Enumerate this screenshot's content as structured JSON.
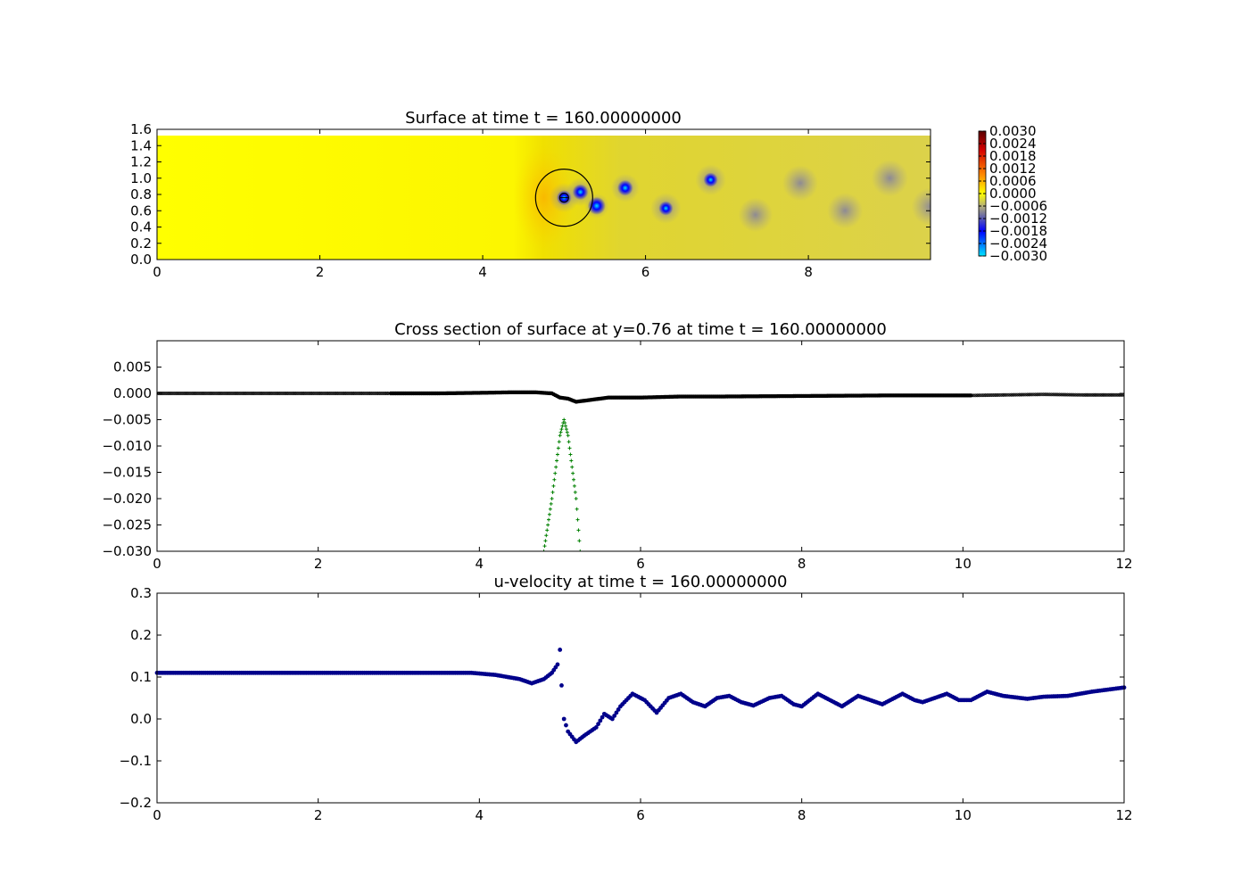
{
  "chart_data": [
    {
      "type": "heatmap",
      "title": "Surface at time t =   160.00000000",
      "xlabel": "",
      "ylabel": "",
      "xlim": [
        0,
        9.5
      ],
      "ylim": [
        0,
        1.6
      ],
      "x_ticks": [
        "0",
        "2",
        "4",
        "6",
        "8"
      ],
      "y_ticks": [
        "0.0",
        "0.2",
        "0.4",
        "0.6",
        "0.8",
        "1.0",
        "1.2",
        "1.4",
        "1.6"
      ],
      "colorbar": {
        "range": [
          -0.003,
          0.003
        ],
        "ticks": [
          "0.0030",
          "0.0024",
          "0.0018",
          "0.0012",
          "0.0006",
          "0.0000",
          "−0.0006",
          "−0.0012",
          "−0.0018",
          "−0.0024",
          "−0.0030"
        ]
      },
      "vortices": [
        {
          "x": 5.0,
          "y": 0.76,
          "value": -0.0022
        },
        {
          "x": 5.2,
          "y": 0.83,
          "value": -0.0024
        },
        {
          "x": 5.4,
          "y": 0.66,
          "value": -0.003
        },
        {
          "x": 5.75,
          "y": 0.88,
          "value": -0.0024
        },
        {
          "x": 6.25,
          "y": 0.63,
          "value": -0.002
        },
        {
          "x": 6.8,
          "y": 0.98,
          "value": -0.002
        },
        {
          "x": 7.35,
          "y": 0.55,
          "value": -0.0014
        },
        {
          "x": 7.9,
          "y": 0.94,
          "value": -0.0012
        },
        {
          "x": 8.45,
          "y": 0.6,
          "value": -0.0012
        },
        {
          "x": 9.0,
          "y": 1.0,
          "value": -0.001
        },
        {
          "x": 9.5,
          "y": 0.65,
          "value": -0.0008
        }
      ],
      "colors": {
        "positive": "#ff0000",
        "zero": "#ffff00",
        "negative": "#0000ff",
        "min": "#00e5ff"
      }
    },
    {
      "type": "scatter",
      "title": "Cross section of surface at y=0.76 at time t =   160.00000000",
      "xlabel": "",
      "ylabel": "",
      "xlim": [
        0,
        12
      ],
      "ylim": [
        -0.03,
        0.01
      ],
      "x_ticks": [
        "0",
        "2",
        "4",
        "6",
        "8",
        "10",
        "12"
      ],
      "y_ticks": [
        "0.005",
        "0.000",
        "−0.005",
        "−0.010",
        "−0.015",
        "−0.020",
        "−0.025",
        "−0.030"
      ],
      "series": [
        {
          "color": "#000000",
          "points": [
            [
              0,
              0.0
            ],
            [
              1,
              0.0
            ],
            [
              2,
              0.0
            ],
            [
              2.9,
              0.0
            ],
            [
              3.5,
              0.0
            ],
            [
              4.0,
              0.0001
            ],
            [
              4.4,
              0.0002
            ],
            [
              4.7,
              0.0002
            ],
            [
              4.9,
              0.0
            ],
            [
              5.0,
              -0.0008
            ],
            [
              5.1,
              -0.001
            ],
            [
              5.2,
              -0.0016
            ],
            [
              5.4,
              -0.0012
            ],
            [
              5.6,
              -0.0008
            ],
            [
              6.0,
              -0.0008
            ],
            [
              6.5,
              -0.0006
            ],
            [
              7.0,
              -0.0006
            ],
            [
              8.0,
              -0.0005
            ],
            [
              9.0,
              -0.0004
            ],
            [
              10.1,
              -0.0004
            ],
            [
              10.5,
              -0.0003
            ],
            [
              11.0,
              -0.0002
            ],
            [
              11.5,
              -0.0003
            ],
            [
              12.0,
              -0.0003
            ]
          ]
        },
        {
          "color": "#008000",
          "points": [
            [
              4.8,
              -0.03
            ],
            [
              4.9,
              -0.02
            ],
            [
              5.0,
              -0.008
            ],
            [
              5.05,
              -0.005
            ],
            [
              5.1,
              -0.008
            ],
            [
              5.2,
              -0.02
            ],
            [
              5.25,
              -0.03
            ]
          ]
        }
      ]
    },
    {
      "type": "scatter",
      "title": "u-velocity at time t =   160.00000000",
      "xlabel": "",
      "ylabel": "",
      "xlim": [
        0,
        12
      ],
      "ylim": [
        -0.2,
        0.3
      ],
      "x_ticks": [
        "0",
        "2",
        "4",
        "6",
        "8",
        "10",
        "12"
      ],
      "y_ticks": [
        "0.3",
        "0.2",
        "0.1",
        "0.0",
        "−0.1",
        "−0.2"
      ],
      "series": [
        {
          "color": "#00008b",
          "points": [
            [
              0,
              0.11
            ],
            [
              1,
              0.11
            ],
            [
              2,
              0.11
            ],
            [
              3,
              0.11
            ],
            [
              3.9,
              0.11
            ],
            [
              4.2,
              0.105
            ],
            [
              4.5,
              0.095
            ],
            [
              4.65,
              0.085
            ],
            [
              4.8,
              0.095
            ],
            [
              4.9,
              0.11
            ],
            [
              4.97,
              0.13
            ],
            [
              5.0,
              0.165
            ],
            [
              5.02,
              0.08
            ],
            [
              5.05,
              0.0
            ],
            [
              5.1,
              -0.03
            ],
            [
              5.2,
              -0.055
            ],
            [
              5.3,
              -0.04
            ],
            [
              5.45,
              -0.02
            ],
            [
              5.55,
              0.012
            ],
            [
              5.65,
              0.0
            ],
            [
              5.75,
              0.03
            ],
            [
              5.9,
              0.06
            ],
            [
              6.05,
              0.045
            ],
            [
              6.2,
              0.015
            ],
            [
              6.35,
              0.05
            ],
            [
              6.5,
              0.06
            ],
            [
              6.65,
              0.04
            ],
            [
              6.8,
              0.03
            ],
            [
              6.95,
              0.05
            ],
            [
              7.1,
              0.055
            ],
            [
              7.25,
              0.04
            ],
            [
              7.4,
              0.032
            ],
            [
              7.6,
              0.05
            ],
            [
              7.75,
              0.055
            ],
            [
              7.9,
              0.035
            ],
            [
              8.0,
              0.03
            ],
            [
              8.2,
              0.06
            ],
            [
              8.35,
              0.045
            ],
            [
              8.5,
              0.03
            ],
            [
              8.7,
              0.055
            ],
            [
              8.85,
              0.045
            ],
            [
              9.0,
              0.035
            ],
            [
              9.25,
              0.06
            ],
            [
              9.4,
              0.045
            ],
            [
              9.5,
              0.04
            ],
            [
              9.8,
              0.06
            ],
            [
              9.95,
              0.045
            ],
            [
              10.1,
              0.045
            ],
            [
              10.3,
              0.065
            ],
            [
              10.5,
              0.055
            ],
            [
              10.8,
              0.048
            ],
            [
              11.0,
              0.053
            ],
            [
              11.3,
              0.055
            ],
            [
              11.6,
              0.065
            ],
            [
              12.0,
              0.075
            ]
          ]
        }
      ]
    }
  ]
}
